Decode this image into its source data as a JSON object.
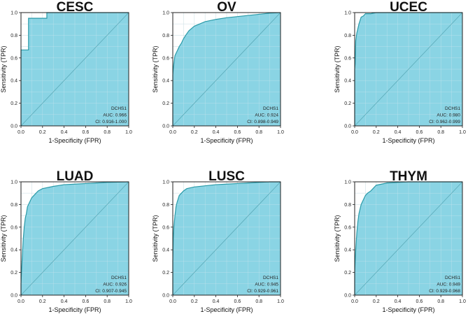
{
  "colors": {
    "fill": "#8ad4e4",
    "curve": "#2a9aa8",
    "diagonal": "#5aaab8",
    "grid": "#c9e6ee",
    "frame": "#222222"
  },
  "chart_data": [
    {
      "type": "area",
      "title": "CESC",
      "xlabel": "1-Specificity (FPR)",
      "ylabel": "Sensitivity (TPR)",
      "xlim": [
        0,
        1
      ],
      "ylim": [
        0,
        1
      ],
      "x_ticks": [
        "0.0",
        "0.2",
        "0.4",
        "0.6",
        "0.8",
        "1.0"
      ],
      "y_ticks": [
        "0.0",
        "0.2",
        "0.4",
        "0.6",
        "0.8",
        "1.0"
      ],
      "grid": true,
      "legend_lines": [
        "DCHS1",
        "AUC: 0.966",
        "CI: 0.916-1.000"
      ],
      "series": [
        {
          "x": [
            0,
            0,
            0.07,
            0.07,
            0.24,
            0.24,
            1.0
          ],
          "y": [
            0,
            0.67,
            0.67,
            0.95,
            0.95,
            1.0,
            1.0
          ]
        }
      ]
    },
    {
      "type": "area",
      "title": "OV",
      "xlabel": "1-Specificity (FPR)",
      "ylabel": "Sensitivity (TPR)",
      "xlim": [
        0,
        1
      ],
      "ylim": [
        0,
        1
      ],
      "x_ticks": [
        "0.0",
        "0.2",
        "0.4",
        "0.6",
        "0.8",
        "1.0"
      ],
      "y_ticks": [
        "0.0",
        "0.2",
        "0.4",
        "0.6",
        "0.8",
        "1.0"
      ],
      "grid": true,
      "legend_lines": [
        "DCHS1",
        "AUC: 0.924",
        "CI: 0.898-0.949"
      ],
      "series": [
        {
          "x": [
            0,
            0,
            0.01,
            0.02,
            0.04,
            0.06,
            0.08,
            0.1,
            0.12,
            0.15,
            0.2,
            0.25,
            0.3,
            0.4,
            0.5,
            0.6,
            0.7,
            0.8,
            0.9,
            1.0
          ],
          "y": [
            0,
            0.45,
            0.55,
            0.62,
            0.66,
            0.7,
            0.73,
            0.77,
            0.8,
            0.84,
            0.88,
            0.9,
            0.92,
            0.94,
            0.955,
            0.965,
            0.975,
            0.985,
            0.995,
            1.0
          ]
        }
      ]
    },
    {
      "type": "area",
      "title": "UCEC",
      "xlabel": "1-Specificity (FPR)",
      "ylabel": "Sensitivity (TPR)",
      "xlim": [
        0,
        1
      ],
      "ylim": [
        0,
        1
      ],
      "x_ticks": [
        "0.0",
        "0.2",
        "0.4",
        "0.6",
        "0.8",
        "1.0"
      ],
      "y_ticks": [
        "0.0",
        "0.2",
        "0.4",
        "0.6",
        "0.8",
        "1.0"
      ],
      "grid": true,
      "legend_lines": [
        "DCHS1",
        "AUC: 0.980",
        "CI: 0.962-0.999"
      ],
      "series": [
        {
          "x": [
            0,
            0,
            0.005,
            0.01,
            0.02,
            0.03,
            0.04,
            0.05,
            0.06,
            0.08,
            0.1,
            0.15,
            0.2,
            0.4,
            0.6,
            0.8,
            1.0
          ],
          "y": [
            0,
            0.5,
            0.55,
            0.75,
            0.82,
            0.86,
            0.9,
            0.93,
            0.96,
            0.97,
            0.99,
            0.99,
            1.0,
            1.0,
            1.0,
            1.0,
            1.0
          ]
        }
      ]
    },
    {
      "type": "area",
      "title": "LUAD",
      "xlabel": "1-Specificity (FPR)",
      "ylabel": "Sensitivity (TPR)",
      "xlim": [
        0,
        1
      ],
      "ylim": [
        0,
        1
      ],
      "x_ticks": [
        "0.0",
        "0.2",
        "0.4",
        "0.6",
        "0.8",
        "1.0"
      ],
      "y_ticks": [
        "0.0",
        "0.2",
        "0.4",
        "0.6",
        "0.8",
        "1.0"
      ],
      "grid": true,
      "legend_lines": [
        "DCHS1",
        "AUC: 0.926",
        "CI: 0.907-0.945"
      ],
      "series": [
        {
          "x": [
            0,
            0,
            0.01,
            0.02,
            0.03,
            0.04,
            0.05,
            0.06,
            0.08,
            0.1,
            0.13,
            0.16,
            0.2,
            0.3,
            0.4,
            0.5,
            0.6,
            0.7,
            0.8,
            1.0
          ],
          "y": [
            0,
            0.1,
            0.3,
            0.48,
            0.6,
            0.68,
            0.72,
            0.78,
            0.82,
            0.86,
            0.89,
            0.92,
            0.94,
            0.96,
            0.975,
            0.98,
            0.985,
            0.99,
            0.995,
            1.0
          ]
        }
      ]
    },
    {
      "type": "area",
      "title": "LUSC",
      "xlabel": "1-Specificity (FPR)",
      "ylabel": "Sensitivity (TPR)",
      "xlim": [
        0,
        1
      ],
      "ylim": [
        0,
        1
      ],
      "x_ticks": [
        "0.0",
        "0.2",
        "0.4",
        "0.6",
        "0.8",
        "1.0"
      ],
      "y_ticks": [
        "0.0",
        "0.2",
        "0.4",
        "0.6",
        "0.8",
        "1.0"
      ],
      "grid": true,
      "legend_lines": [
        "DCHS1",
        "AUC: 0.945",
        "CI: 0.929-0.961"
      ],
      "series": [
        {
          "x": [
            0,
            0,
            0.005,
            0.01,
            0.02,
            0.03,
            0.04,
            0.05,
            0.06,
            0.08,
            0.1,
            0.13,
            0.2,
            0.3,
            0.4,
            0.5,
            0.6,
            0.7,
            0.8,
            0.9,
            1.0
          ],
          "y": [
            0,
            0.3,
            0.5,
            0.6,
            0.7,
            0.78,
            0.82,
            0.85,
            0.88,
            0.9,
            0.92,
            0.94,
            0.955,
            0.965,
            0.975,
            0.98,
            0.985,
            0.99,
            0.995,
            1.0,
            1.0
          ]
        }
      ]
    },
    {
      "type": "area",
      "title": "THYM",
      "xlabel": "1-Specificity (FPR)",
      "ylabel": "Sensitivity (TPR)",
      "xlim": [
        0,
        1
      ],
      "ylim": [
        0,
        1
      ],
      "x_ticks": [
        "0.0",
        "0.2",
        "0.4",
        "0.6",
        "0.8",
        "1.0"
      ],
      "y_ticks": [
        "0.0",
        "0.2",
        "0.4",
        "0.6",
        "0.8",
        "1.0"
      ],
      "grid": true,
      "legend_lines": [
        "DCHS1",
        "AUC: 0.949",
        "CI: 0.929-0.968"
      ],
      "series": [
        {
          "x": [
            0,
            0,
            0.01,
            0.02,
            0.03,
            0.04,
            0.05,
            0.06,
            0.08,
            0.1,
            0.12,
            0.15,
            0.18,
            0.2,
            0.25,
            0.3,
            0.4,
            0.5,
            0.7,
            1.0
          ],
          "y": [
            0,
            0.2,
            0.4,
            0.55,
            0.65,
            0.72,
            0.76,
            0.8,
            0.84,
            0.88,
            0.9,
            0.92,
            0.95,
            0.97,
            0.98,
            0.99,
            0.995,
            1.0,
            1.0,
            1.0
          ]
        }
      ]
    }
  ]
}
